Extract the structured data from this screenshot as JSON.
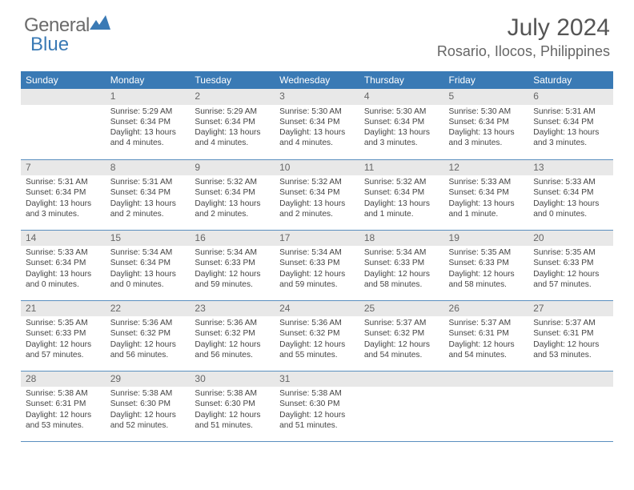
{
  "logo": {
    "word1": "General",
    "word2": "Blue"
  },
  "title": "July 2024",
  "location": "Rosario, Ilocos, Philippines",
  "day_headers": [
    "Sunday",
    "Monday",
    "Tuesday",
    "Wednesday",
    "Thursday",
    "Friday",
    "Saturday"
  ],
  "colors": {
    "header_bg": "#3a7ab5",
    "row_divider": "#5a8fbf",
    "daynum_bg": "#e8e8e8",
    "text": "#4a4a4a"
  },
  "weeks": [
    [
      null,
      {
        "d": "1",
        "sr": "Sunrise: 5:29 AM",
        "ss": "Sunset: 6:34 PM",
        "dl1": "Daylight: 13 hours",
        "dl2": "and 4 minutes."
      },
      {
        "d": "2",
        "sr": "Sunrise: 5:29 AM",
        "ss": "Sunset: 6:34 PM",
        "dl1": "Daylight: 13 hours",
        "dl2": "and 4 minutes."
      },
      {
        "d": "3",
        "sr": "Sunrise: 5:30 AM",
        "ss": "Sunset: 6:34 PM",
        "dl1": "Daylight: 13 hours",
        "dl2": "and 4 minutes."
      },
      {
        "d": "4",
        "sr": "Sunrise: 5:30 AM",
        "ss": "Sunset: 6:34 PM",
        "dl1": "Daylight: 13 hours",
        "dl2": "and 3 minutes."
      },
      {
        "d": "5",
        "sr": "Sunrise: 5:30 AM",
        "ss": "Sunset: 6:34 PM",
        "dl1": "Daylight: 13 hours",
        "dl2": "and 3 minutes."
      },
      {
        "d": "6",
        "sr": "Sunrise: 5:31 AM",
        "ss": "Sunset: 6:34 PM",
        "dl1": "Daylight: 13 hours",
        "dl2": "and 3 minutes."
      }
    ],
    [
      {
        "d": "7",
        "sr": "Sunrise: 5:31 AM",
        "ss": "Sunset: 6:34 PM",
        "dl1": "Daylight: 13 hours",
        "dl2": "and 3 minutes."
      },
      {
        "d": "8",
        "sr": "Sunrise: 5:31 AM",
        "ss": "Sunset: 6:34 PM",
        "dl1": "Daylight: 13 hours",
        "dl2": "and 2 minutes."
      },
      {
        "d": "9",
        "sr": "Sunrise: 5:32 AM",
        "ss": "Sunset: 6:34 PM",
        "dl1": "Daylight: 13 hours",
        "dl2": "and 2 minutes."
      },
      {
        "d": "10",
        "sr": "Sunrise: 5:32 AM",
        "ss": "Sunset: 6:34 PM",
        "dl1": "Daylight: 13 hours",
        "dl2": "and 2 minutes."
      },
      {
        "d": "11",
        "sr": "Sunrise: 5:32 AM",
        "ss": "Sunset: 6:34 PM",
        "dl1": "Daylight: 13 hours",
        "dl2": "and 1 minute."
      },
      {
        "d": "12",
        "sr": "Sunrise: 5:33 AM",
        "ss": "Sunset: 6:34 PM",
        "dl1": "Daylight: 13 hours",
        "dl2": "and 1 minute."
      },
      {
        "d": "13",
        "sr": "Sunrise: 5:33 AM",
        "ss": "Sunset: 6:34 PM",
        "dl1": "Daylight: 13 hours",
        "dl2": "and 0 minutes."
      }
    ],
    [
      {
        "d": "14",
        "sr": "Sunrise: 5:33 AM",
        "ss": "Sunset: 6:34 PM",
        "dl1": "Daylight: 13 hours",
        "dl2": "and 0 minutes."
      },
      {
        "d": "15",
        "sr": "Sunrise: 5:34 AM",
        "ss": "Sunset: 6:34 PM",
        "dl1": "Daylight: 13 hours",
        "dl2": "and 0 minutes."
      },
      {
        "d": "16",
        "sr": "Sunrise: 5:34 AM",
        "ss": "Sunset: 6:33 PM",
        "dl1": "Daylight: 12 hours",
        "dl2": "and 59 minutes."
      },
      {
        "d": "17",
        "sr": "Sunrise: 5:34 AM",
        "ss": "Sunset: 6:33 PM",
        "dl1": "Daylight: 12 hours",
        "dl2": "and 59 minutes."
      },
      {
        "d": "18",
        "sr": "Sunrise: 5:34 AM",
        "ss": "Sunset: 6:33 PM",
        "dl1": "Daylight: 12 hours",
        "dl2": "and 58 minutes."
      },
      {
        "d": "19",
        "sr": "Sunrise: 5:35 AM",
        "ss": "Sunset: 6:33 PM",
        "dl1": "Daylight: 12 hours",
        "dl2": "and 58 minutes."
      },
      {
        "d": "20",
        "sr": "Sunrise: 5:35 AM",
        "ss": "Sunset: 6:33 PM",
        "dl1": "Daylight: 12 hours",
        "dl2": "and 57 minutes."
      }
    ],
    [
      {
        "d": "21",
        "sr": "Sunrise: 5:35 AM",
        "ss": "Sunset: 6:33 PM",
        "dl1": "Daylight: 12 hours",
        "dl2": "and 57 minutes."
      },
      {
        "d": "22",
        "sr": "Sunrise: 5:36 AM",
        "ss": "Sunset: 6:32 PM",
        "dl1": "Daylight: 12 hours",
        "dl2": "and 56 minutes."
      },
      {
        "d": "23",
        "sr": "Sunrise: 5:36 AM",
        "ss": "Sunset: 6:32 PM",
        "dl1": "Daylight: 12 hours",
        "dl2": "and 56 minutes."
      },
      {
        "d": "24",
        "sr": "Sunrise: 5:36 AM",
        "ss": "Sunset: 6:32 PM",
        "dl1": "Daylight: 12 hours",
        "dl2": "and 55 minutes."
      },
      {
        "d": "25",
        "sr": "Sunrise: 5:37 AM",
        "ss": "Sunset: 6:32 PM",
        "dl1": "Daylight: 12 hours",
        "dl2": "and 54 minutes."
      },
      {
        "d": "26",
        "sr": "Sunrise: 5:37 AM",
        "ss": "Sunset: 6:31 PM",
        "dl1": "Daylight: 12 hours",
        "dl2": "and 54 minutes."
      },
      {
        "d": "27",
        "sr": "Sunrise: 5:37 AM",
        "ss": "Sunset: 6:31 PM",
        "dl1": "Daylight: 12 hours",
        "dl2": "and 53 minutes."
      }
    ],
    [
      {
        "d": "28",
        "sr": "Sunrise: 5:38 AM",
        "ss": "Sunset: 6:31 PM",
        "dl1": "Daylight: 12 hours",
        "dl2": "and 53 minutes."
      },
      {
        "d": "29",
        "sr": "Sunrise: 5:38 AM",
        "ss": "Sunset: 6:30 PM",
        "dl1": "Daylight: 12 hours",
        "dl2": "and 52 minutes."
      },
      {
        "d": "30",
        "sr": "Sunrise: 5:38 AM",
        "ss": "Sunset: 6:30 PM",
        "dl1": "Daylight: 12 hours",
        "dl2": "and 51 minutes."
      },
      {
        "d": "31",
        "sr": "Sunrise: 5:38 AM",
        "ss": "Sunset: 6:30 PM",
        "dl1": "Daylight: 12 hours",
        "dl2": "and 51 minutes."
      },
      null,
      null,
      null
    ]
  ]
}
